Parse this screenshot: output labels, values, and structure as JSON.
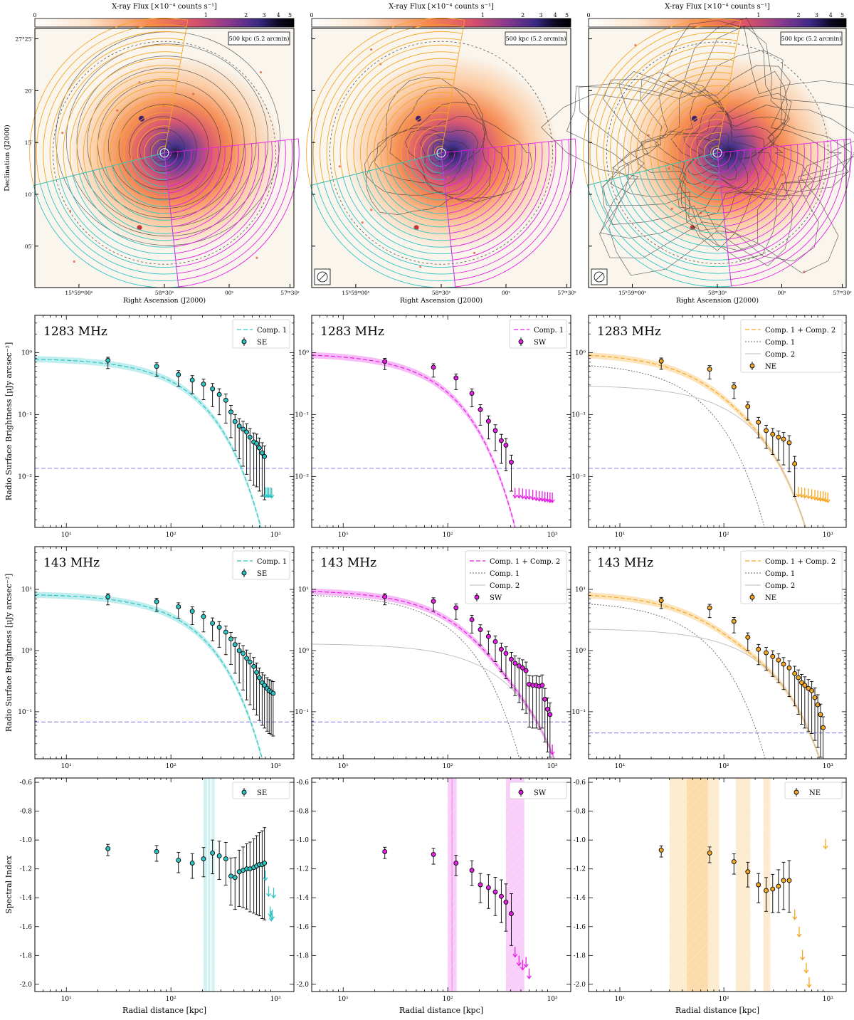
{
  "figure": {
    "colorbar_title": "X-ray Flux [×10⁻⁴ counts s⁻¹]",
    "colorbar_ticks": [
      "0",
      "1",
      "2",
      "3",
      "4",
      "5"
    ],
    "scalebar": "500 kpc (5.2 arcmin)",
    "ra_label": "Right Ascension (J2000)",
    "dec_label": "Declination (J2000)",
    "ra_ticks": [
      "15ʰ59ᵐ00ˢ",
      "58ᵐ30ˢ",
      "00ˢ",
      "57ᵐ30ˢ"
    ],
    "dec_ticks": [
      "27°25′",
      "20′",
      "15′",
      "10′",
      "05′"
    ],
    "xlabel": "Radial distance [kpc]",
    "ylabel_sb": "Radio Surface Brightness [μJy arcsec⁻²]",
    "ylabel_si": "Spectral Index",
    "log_ticks": [
      "10¹",
      "10²",
      "10³"
    ]
  },
  "colors": {
    "SE": "#2ec4c4",
    "SW": "#e61ee6",
    "NE": "#f5a623",
    "noise": "#8888ee",
    "comp": "#777777",
    "comp2": "#bbbbbb"
  },
  "chart_data": [
    {
      "panel": "1283 MHz SE",
      "type": "scatter",
      "freq_label": "1283 MHz",
      "sector": "SE",
      "scale": "log-log",
      "xlim": [
        5,
        1500
      ],
      "ylim": [
        0.0015,
        4
      ],
      "yticks": [
        [
          "10⁰",
          1
        ],
        [
          "10⁻¹",
          0.1
        ],
        [
          "10⁻²",
          0.01
        ]
      ],
      "legend": [
        "Comp. 1",
        "SE"
      ],
      "points": [
        [
          25,
          0.75
        ],
        [
          73,
          0.6
        ],
        [
          118,
          0.44
        ],
        [
          160,
          0.36
        ],
        [
          205,
          0.31
        ],
        [
          250,
          0.26
        ],
        [
          290,
          0.21
        ],
        [
          335,
          0.17
        ],
        [
          375,
          0.11
        ],
        [
          410,
          0.077
        ],
        [
          450,
          0.065
        ],
        [
          490,
          0.058
        ],
        [
          530,
          0.052
        ],
        [
          570,
          0.043
        ],
        [
          620,
          0.036
        ],
        [
          660,
          0.034
        ],
        [
          700,
          0.029
        ],
        [
          745,
          0.024
        ],
        [
          785,
          0.021
        ]
      ],
      "uplims": [
        [
          800,
          0.0046
        ],
        [
          830,
          0.0046
        ],
        [
          860,
          0.0046
        ],
        [
          890,
          0.0046
        ],
        [
          920,
          0.0045
        ]
      ],
      "fits": [
        {
          "label": "Comp. 1",
          "style": "main",
          "I0": 0.82,
          "re": 115
        }
      ],
      "noise": 0.0135
    },
    {
      "panel": "1283 MHz SW",
      "type": "scatter",
      "freq_label": "1283 MHz",
      "sector": "SW",
      "scale": "log-log",
      "xlim": [
        5,
        1500
      ],
      "ylim": [
        0.0015,
        4
      ],
      "yticks": [
        [
          "10⁰",
          1
        ],
        [
          "10⁻¹",
          0.1
        ],
        [
          "10⁻²",
          0.01
        ]
      ],
      "legend": [
        "Comp. 1",
        "SW"
      ],
      "points": [
        [
          25,
          0.72
        ],
        [
          73,
          0.58
        ],
        [
          120,
          0.39
        ],
        [
          170,
          0.22
        ],
        [
          205,
          0.12
        ],
        [
          245,
          0.078
        ],
        [
          285,
          0.055
        ],
        [
          325,
          0.038
        ],
        [
          360,
          0.032
        ],
        [
          405,
          0.017
        ]
      ],
      "uplims": [
        [
          440,
          0.0045
        ],
        [
          480,
          0.0045
        ],
        [
          520,
          0.0044
        ],
        [
          560,
          0.0043
        ],
        [
          600,
          0.0043
        ],
        [
          650,
          0.0042
        ],
        [
          700,
          0.0041
        ],
        [
          750,
          0.004
        ],
        [
          800,
          0.004
        ],
        [
          850,
          0.0039
        ],
        [
          900,
          0.0039
        ],
        [
          950,
          0.0038
        ],
        [
          1000,
          0.0038
        ]
      ],
      "fits": [
        {
          "label": "Comp. 1",
          "style": "main",
          "I0": 0.98,
          "re": 68
        }
      ],
      "noise": 0.0135
    },
    {
      "panel": "1283 MHz NE",
      "type": "scatter",
      "freq_label": "1283 MHz",
      "sector": "NE",
      "scale": "log-log",
      "xlim": [
        5,
        1500
      ],
      "ylim": [
        0.0015,
        4
      ],
      "yticks": [
        [
          "10⁰",
          1
        ],
        [
          "10⁻¹",
          0.1
        ],
        [
          "10⁻²",
          0.01
        ]
      ],
      "legend": [
        "Comp. 1 + Comp. 2",
        "Comp. 1",
        "Comp. 2",
        "NE"
      ],
      "points": [
        [
          25,
          0.73
        ],
        [
          73,
          0.54
        ],
        [
          125,
          0.28
        ],
        [
          170,
          0.135
        ],
        [
          215,
          0.075
        ],
        [
          255,
          0.055
        ],
        [
          295,
          0.048
        ],
        [
          335,
          0.043
        ],
        [
          375,
          0.04
        ],
        [
          425,
          0.035
        ],
        [
          480,
          0.016
        ]
      ],
      "uplims": [
        [
          520,
          0.0047
        ],
        [
          560,
          0.0046
        ],
        [
          600,
          0.0045
        ],
        [
          650,
          0.0044
        ],
        [
          700,
          0.0043
        ],
        [
          750,
          0.0042
        ],
        [
          800,
          0.0041
        ],
        [
          850,
          0.004
        ],
        [
          900,
          0.004
        ],
        [
          950,
          0.0039
        ],
        [
          1000,
          0.0038
        ]
      ],
      "fits": [
        {
          "label": "Comp. 1 + Comp. 2",
          "style": "main",
          "sum": true
        },
        {
          "label": "Comp. 1",
          "style": "comp",
          "I0": 0.7,
          "re": 40
        },
        {
          "label": "Comp. 2",
          "style": "comp2",
          "I0": 0.3,
          "re": 115
        }
      ],
      "noise": 0.0135
    },
    {
      "panel": "143 MHz SE",
      "type": "scatter",
      "freq_label": "143 MHz",
      "sector": "SE",
      "scale": "log-log",
      "xlim": [
        5,
        1500
      ],
      "ylim": [
        0.017,
        50
      ],
      "yticks": [
        [
          "10¹",
          10
        ],
        [
          "10⁰",
          1
        ],
        [
          "10⁻¹",
          0.1
        ]
      ],
      "legend": [
        "Comp. 1",
        "SE"
      ],
      "points": [
        [
          25,
          7.6
        ],
        [
          73,
          6.3
        ],
        [
          118,
          5.2
        ],
        [
          160,
          4.4
        ],
        [
          205,
          3.6
        ],
        [
          250,
          2.8
        ],
        [
          290,
          2.4
        ],
        [
          335,
          2.0
        ],
        [
          375,
          1.55
        ],
        [
          410,
          1.25
        ],
        [
          450,
          1.0
        ],
        [
          490,
          0.9
        ],
        [
          530,
          0.75
        ],
        [
          570,
          0.65
        ],
        [
          620,
          0.55
        ],
        [
          660,
          0.44
        ],
        [
          700,
          0.36
        ],
        [
          745,
          0.3
        ],
        [
          785,
          0.27
        ],
        [
          830,
          0.24
        ],
        [
          870,
          0.22
        ],
        [
          910,
          0.21
        ],
        [
          950,
          0.2
        ]
      ],
      "uplims": [],
      "fits": [
        {
          "label": "Comp. 1",
          "style": "main",
          "I0": 8.5,
          "re": 120
        }
      ],
      "noise": 0.068
    },
    {
      "panel": "143 MHz SW",
      "type": "scatter",
      "freq_label": "143 MHz",
      "sector": "SW",
      "scale": "log-log",
      "xlim": [
        5,
        1500
      ],
      "ylim": [
        0.017,
        50
      ],
      "yticks": [
        [
          "10¹",
          10
        ],
        [
          "10⁰",
          1
        ],
        [
          "10⁻¹",
          0.1
        ]
      ],
      "legend": [
        "Comp. 1 + Comp. 2",
        "Comp. 1",
        "Comp. 2",
        "SW"
      ],
      "points": [
        [
          25,
          7.6
        ],
        [
          73,
          6.4
        ],
        [
          120,
          5.0
        ],
        [
          170,
          3.2
        ],
        [
          205,
          2.2
        ],
        [
          245,
          1.7
        ],
        [
          285,
          1.4
        ],
        [
          325,
          1.05
        ],
        [
          360,
          0.9
        ],
        [
          405,
          0.72
        ],
        [
          440,
          0.62
        ],
        [
          480,
          0.56
        ],
        [
          520,
          0.52
        ],
        [
          560,
          0.47
        ],
        [
          600,
          0.28
        ],
        [
          650,
          0.27
        ],
        [
          700,
          0.27
        ],
        [
          750,
          0.26
        ],
        [
          800,
          0.27
        ],
        [
          850,
          0.16
        ],
        [
          900,
          0.11
        ],
        [
          950,
          0.09
        ]
      ],
      "uplims": [
        [
          1000,
          0.02
        ]
      ],
      "fits": [
        {
          "label": "Comp. 1 + Comp. 2",
          "style": "main",
          "sum": true
        },
        {
          "label": "Comp. 1",
          "style": "comp",
          "I0": 8.5,
          "re": 78
        },
        {
          "label": "Comp. 2",
          "style": "comp2",
          "I0": 1.3,
          "re": 240
        }
      ],
      "noise": 0.068
    },
    {
      "panel": "143 MHz NE",
      "type": "scatter",
      "freq_label": "143 MHz",
      "sector": "NE",
      "scale": "log-log",
      "xlim": [
        5,
        1500
      ],
      "ylim": [
        0.017,
        50
      ],
      "yticks": [
        [
          "10¹",
          10
        ],
        [
          "10⁰",
          1
        ],
        [
          "10⁻¹",
          0.1
        ]
      ],
      "legend": [
        "Comp. 1 + Comp. 2",
        "Comp. 1",
        "Comp. 2",
        "NE"
      ],
      "points": [
        [
          25,
          6.6
        ],
        [
          73,
          5.0
        ],
        [
          125,
          3.0
        ],
        [
          170,
          1.65
        ],
        [
          215,
          1.05
        ],
        [
          255,
          0.92
        ],
        [
          295,
          0.8
        ],
        [
          335,
          0.7
        ],
        [
          375,
          0.6
        ],
        [
          425,
          0.52
        ],
        [
          480,
          0.42
        ],
        [
          520,
          0.36
        ],
        [
          560,
          0.3
        ],
        [
          600,
          0.27
        ],
        [
          650,
          0.24
        ],
        [
          700,
          0.22
        ],
        [
          750,
          0.17
        ],
        [
          800,
          0.13
        ],
        [
          850,
          0.09
        ],
        [
          900,
          0.055
        ]
      ],
      "uplims": [],
      "fits": [
        {
          "label": "Comp. 1 + Comp. 2",
          "style": "main",
          "sum": true
        },
        {
          "label": "Comp. 1",
          "style": "comp",
          "I0": 6.5,
          "re": 42
        },
        {
          "label": "Comp. 2",
          "style": "comp2",
          "I0": 2.3,
          "re": 170
        }
      ],
      "noise": 0.045
    },
    {
      "panel": "Spectral index SE",
      "type": "scatter",
      "sector": "SE",
      "scale": "log-linear",
      "xlim": [
        5,
        1500
      ],
      "ylim": [
        -2.05,
        -0.57
      ],
      "yticks": [
        [
          "-0.6",
          -0.6
        ],
        [
          "-0.8",
          -0.8
        ],
        [
          "-1.0",
          -1.0
        ],
        [
          "-1.2",
          -1.2
        ],
        [
          "-1.4",
          -1.4
        ],
        [
          "-1.6",
          -1.6
        ],
        [
          "-1.8",
          -1.8
        ],
        [
          "-2.0",
          -2.0
        ]
      ],
      "legend": [
        "SE"
      ],
      "points": [
        [
          25,
          -1.06
        ],
        [
          73,
          -1.08
        ],
        [
          118,
          -1.14
        ],
        [
          160,
          -1.16
        ],
        [
          205,
          -1.13
        ],
        [
          250,
          -1.09
        ],
        [
          290,
          -1.11
        ],
        [
          335,
          -1.13
        ],
        [
          375,
          -1.25
        ],
        [
          410,
          -1.26
        ],
        [
          450,
          -1.22
        ],
        [
          490,
          -1.21
        ],
        [
          530,
          -1.2
        ],
        [
          570,
          -1.2
        ],
        [
          620,
          -1.19
        ],
        [
          660,
          -1.18
        ],
        [
          700,
          -1.17
        ],
        [
          745,
          -1.17
        ],
        [
          785,
          -1.16
        ]
      ],
      "uplims": [
        [
          800,
          -1.28
        ],
        [
          860,
          -1.39
        ],
        [
          960,
          -1.4
        ],
        [
          890,
          -1.53
        ],
        [
          930,
          -1.55
        ],
        [
          910,
          -1.56
        ]
      ],
      "bands": [
        [
          205,
          222
        ],
        [
          225,
          238
        ],
        [
          245,
          262
        ]
      ],
      "noise": null
    },
    {
      "panel": "Spectral index SW",
      "type": "scatter",
      "sector": "SW",
      "scale": "log-linear",
      "xlim": [
        5,
        1500
      ],
      "ylim": [
        -2.05,
        -0.57
      ],
      "yticks": [
        [
          "-0.6",
          -0.6
        ],
        [
          "-0.8",
          -0.8
        ],
        [
          "-1.0",
          -1.0
        ],
        [
          "-1.2",
          -1.2
        ],
        [
          "-1.4",
          -1.4
        ],
        [
          "-1.6",
          -1.6
        ],
        [
          "-1.8",
          -1.8
        ],
        [
          "-2.0",
          -2.0
        ]
      ],
      "legend": [
        "SW"
      ],
      "points": [
        [
          25,
          -1.08
        ],
        [
          73,
          -1.1
        ],
        [
          120,
          -1.16
        ],
        [
          170,
          -1.21
        ],
        [
          205,
          -1.31
        ],
        [
          245,
          -1.33
        ],
        [
          285,
          -1.36
        ],
        [
          325,
          -1.39
        ],
        [
          360,
          -1.43
        ],
        [
          405,
          -1.51
        ]
      ],
      "uplims": [
        [
          440,
          -1.81
        ],
        [
          480,
          -1.87
        ],
        [
          520,
          -1.9
        ],
        [
          560,
          -1.88
        ],
        [
          600,
          -1.96
        ]
      ],
      "bands": [
        [
          100,
          112
        ],
        [
          108,
          122
        ],
        [
          360,
          540
        ]
      ],
      "noise": null
    },
    {
      "panel": "Spectral index NE",
      "type": "scatter",
      "sector": "NE",
      "scale": "log-linear",
      "xlim": [
        5,
        1500
      ],
      "ylim": [
        -2.05,
        -0.57
      ],
      "yticks": [
        [
          "-0.6",
          -0.6
        ],
        [
          "-0.8",
          -0.8
        ],
        [
          "-1.0",
          -1.0
        ],
        [
          "-1.2",
          -1.2
        ],
        [
          "-1.4",
          -1.4
        ],
        [
          "-1.6",
          -1.6
        ],
        [
          "-1.8",
          -1.8
        ],
        [
          "-2.0",
          -2.0
        ]
      ],
      "legend": [
        "NE"
      ],
      "points": [
        [
          25,
          -1.07
        ],
        [
          73,
          -1.09
        ],
        [
          125,
          -1.15
        ],
        [
          170,
          -1.22
        ],
        [
          215,
          -1.31
        ],
        [
          255,
          -1.35
        ],
        [
          295,
          -1.34
        ],
        [
          335,
          -1.32
        ],
        [
          375,
          -1.28
        ],
        [
          425,
          -1.28
        ]
      ],
      "uplims": [
        [
          950,
          -1.06
        ],
        [
          480,
          -1.55
        ],
        [
          530,
          -1.67
        ],
        [
          570,
          -1.83
        ],
        [
          620,
          -1.92
        ],
        [
          660,
          -2.02
        ]
      ],
      "bands": [
        [
          30,
          90
        ],
        [
          44,
          70
        ],
        [
          130,
          180
        ],
        [
          240,
          280
        ]
      ],
      "noise": null
    }
  ],
  "maps": [
    {
      "panel": "map-left",
      "contour_style": "smooth",
      "beam": false
    },
    {
      "panel": "map-middle",
      "contour_style": "halo",
      "beam": true
    },
    {
      "panel": "map-right",
      "contour_style": "patchy",
      "beam": true
    }
  ]
}
